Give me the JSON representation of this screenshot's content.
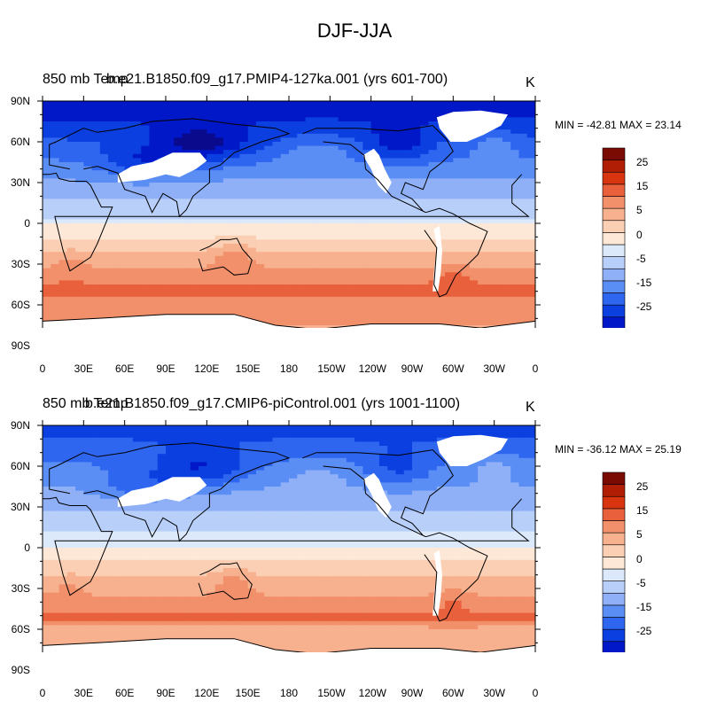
{
  "figure": {
    "title": "DJF-JJA"
  },
  "panels": [
    {
      "left_string": "850 mb Temp",
      "center_string": "b.e21.B1850.f09_g17.PMIP4-127ka.001 (yrs 601-700)",
      "right_string": "K",
      "stats": "MIN = -42.81 MAX =  23.14"
    },
    {
      "left_string": "850 mb Temp",
      "center_string": "b.e21.B1850.f09_g17.CMIP6-piControl.001 (yrs 1001-1100)",
      "right_string": "K",
      "stats": "MIN = -36.12 MAX =  25.19"
    }
  ],
  "colors": {
    "land_mask": "#ffffff",
    "coast": "#000000",
    "levels": [
      "#0a0a8c",
      "#0018c8",
      "#0b3fe0",
      "#2e66f0",
      "#5b8ef5",
      "#8fb0f7",
      "#b8cff9",
      "#dbe9fb",
      "#fde7d7",
      "#fbcfb4",
      "#f7b18e",
      "#f1906a",
      "#e8603c",
      "#d93410",
      "#b01f05",
      "#7a0b03"
    ]
  },
  "chart_data": {
    "type": "heatmap",
    "title": "DJF-JJA",
    "variable": "850 mb Temp",
    "units": "K",
    "lon_ticks": [
      "0",
      "30E",
      "60E",
      "90E",
      "120E",
      "150E",
      "180",
      "150W",
      "120W",
      "90W",
      "60W",
      "30W",
      "0"
    ],
    "lat_ticks": [
      "90N",
      "60N",
      "30N",
      "0",
      "30S",
      "60S",
      "90S"
    ],
    "colorbar_levels": [
      -35,
      -30,
      -25,
      -20,
      -15,
      -10,
      -5,
      0,
      5,
      10,
      15,
      20,
      25,
      30,
      35
    ],
    "colorbar_labels": [
      "25",
      "15",
      "5",
      "0",
      "-5",
      "-15",
      "-25"
    ],
    "panels": [
      {
        "case": "b.e21.B1850.f09_g17.PMIP4-127ka.001",
        "years": "601-700",
        "min": -42.81,
        "max": 23.14
      },
      {
        "case": "b.e21.B1850.f09_g17.CMIP6-piControl.001",
        "years": "1001-1100",
        "min": -36.12,
        "max": 25.19
      }
    ]
  }
}
